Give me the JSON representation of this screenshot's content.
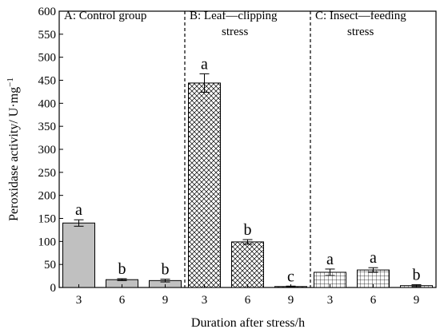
{
  "chart_data": {
    "type": "bar",
    "xlabel": "Duration after stress/h",
    "ylabel": "Peroxidase activity/ U·mg",
    "ylabel_sup": "−1",
    "ylim": [
      0,
      600
    ],
    "yticks": [
      0,
      50,
      100,
      150,
      200,
      250,
      300,
      350,
      400,
      450,
      500,
      550,
      600
    ],
    "grid": false,
    "groups": [
      {
        "name": "A: Control group",
        "name_lines": [
          "A: Control group"
        ],
        "fill": "solid-gray",
        "fill_color": "#c0c0c0",
        "categories": [
          "3",
          "6",
          "9"
        ],
        "values": [
          140,
          17,
          15
        ],
        "errors": [
          7,
          2,
          3
        ],
        "letters": [
          "a",
          "b",
          "b"
        ]
      },
      {
        "name": "B: Leaf—clipping stress",
        "name_lines": [
          "B: Leaf—clipping",
          "stress"
        ],
        "fill": "crosshatch",
        "categories": [
          "3",
          "6",
          "9"
        ],
        "values": [
          444,
          99,
          2
        ],
        "errors": [
          20,
          5,
          1
        ],
        "letters": [
          "a",
          "b",
          "c"
        ]
      },
      {
        "name": "C: Insect—feeding stress",
        "name_lines": [
          "C: Insect—feeding",
          "stress"
        ],
        "fill": "grid",
        "categories": [
          "3",
          "6",
          "9"
        ],
        "values": [
          33,
          38,
          4
        ],
        "errors": [
          7,
          5,
          2
        ],
        "letters": [
          "a",
          "a",
          "b"
        ]
      }
    ]
  }
}
